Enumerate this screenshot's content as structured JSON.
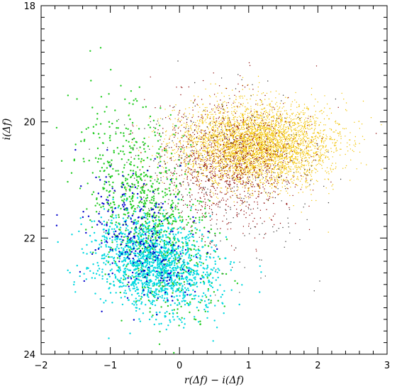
{
  "chart_data": {
    "type": "scatter",
    "title": "",
    "xlabel": "r(Δf) − i(Δf)",
    "ylabel": "i(Δf)",
    "xlim": [
      -2,
      3
    ],
    "ylim": [
      24,
      18
    ],
    "y_inverted": true,
    "grid": false,
    "legend": "none",
    "x_ticks": [
      -2,
      -1,
      0,
      1,
      2,
      3
    ],
    "x_tick_labels": [
      "−2",
      "−1",
      "0",
      "1",
      "2",
      "3"
    ],
    "y_ticks": [
      18,
      20,
      22,
      24
    ],
    "y_tick_labels": [
      "18",
      "20",
      "22",
      "24"
    ],
    "series": [
      {
        "color": "#f2c200",
        "marker": "dot",
        "distribution": {
          "x_mean": 1.1,
          "x_sd": 0.55,
          "y_mean": 20.4,
          "y_sd": 0.35
        },
        "points": 4200
      },
      {
        "color": "#8b0000",
        "marker": "dot",
        "distribution": {
          "x_mean": 0.7,
          "x_sd": 0.5,
          "y_mean": 20.7,
          "y_sd": 0.55
        },
        "points": 1100
      },
      {
        "color": "#22cc22",
        "marker": "dot",
        "distribution": {
          "x_mean": -0.45,
          "x_sd": 0.4,
          "y_mean": 21.6,
          "y_sd": 0.85
        },
        "points": 900
      },
      {
        "color": "#00d8e0",
        "marker": "dot",
        "distribution": {
          "x_mean": -0.35,
          "x_sd": 0.42,
          "y_mean": 22.45,
          "y_sd": 0.4
        },
        "points": 1400
      },
      {
        "color": "#0000cc",
        "marker": "dot",
        "distribution": {
          "x_mean": -0.6,
          "x_sd": 0.4,
          "y_mean": 22.0,
          "y_sd": 0.55
        },
        "points": 260
      },
      {
        "color": "#333333",
        "marker": "dot",
        "distribution": {
          "x_mean": 0.6,
          "x_sd": 0.7,
          "y_mean": 21.0,
          "y_sd": 0.8
        },
        "points": 350
      }
    ]
  }
}
